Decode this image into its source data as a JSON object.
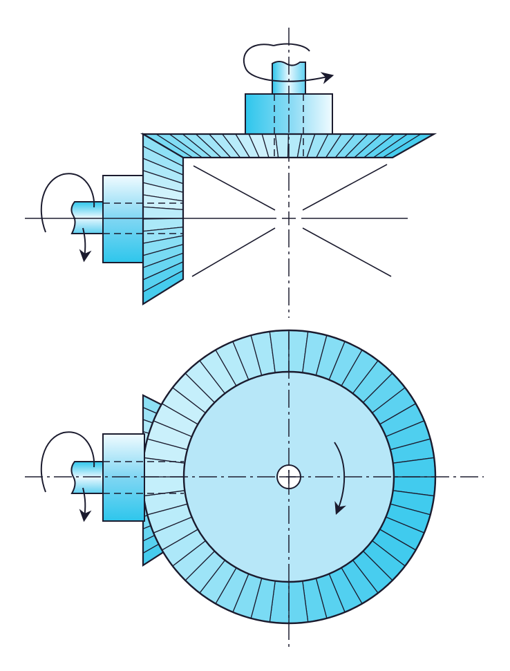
{
  "diagram": {
    "subject": "bevel-gear-pair",
    "views": [
      "elevation",
      "plan"
    ],
    "colors": {
      "outline": "#1b1b2e",
      "gear_dark": "#2ec6ec",
      "gear_light": "#eefaff",
      "face": "#b7e7f8",
      "background": "#ffffff"
    },
    "gear_teeth_count": 48,
    "pinion_teeth_count": 14,
    "rotation_arrows": [
      "horizontal-shaft-rotation",
      "vertical-shaft-rotation",
      "wheel-rotation"
    ]
  }
}
